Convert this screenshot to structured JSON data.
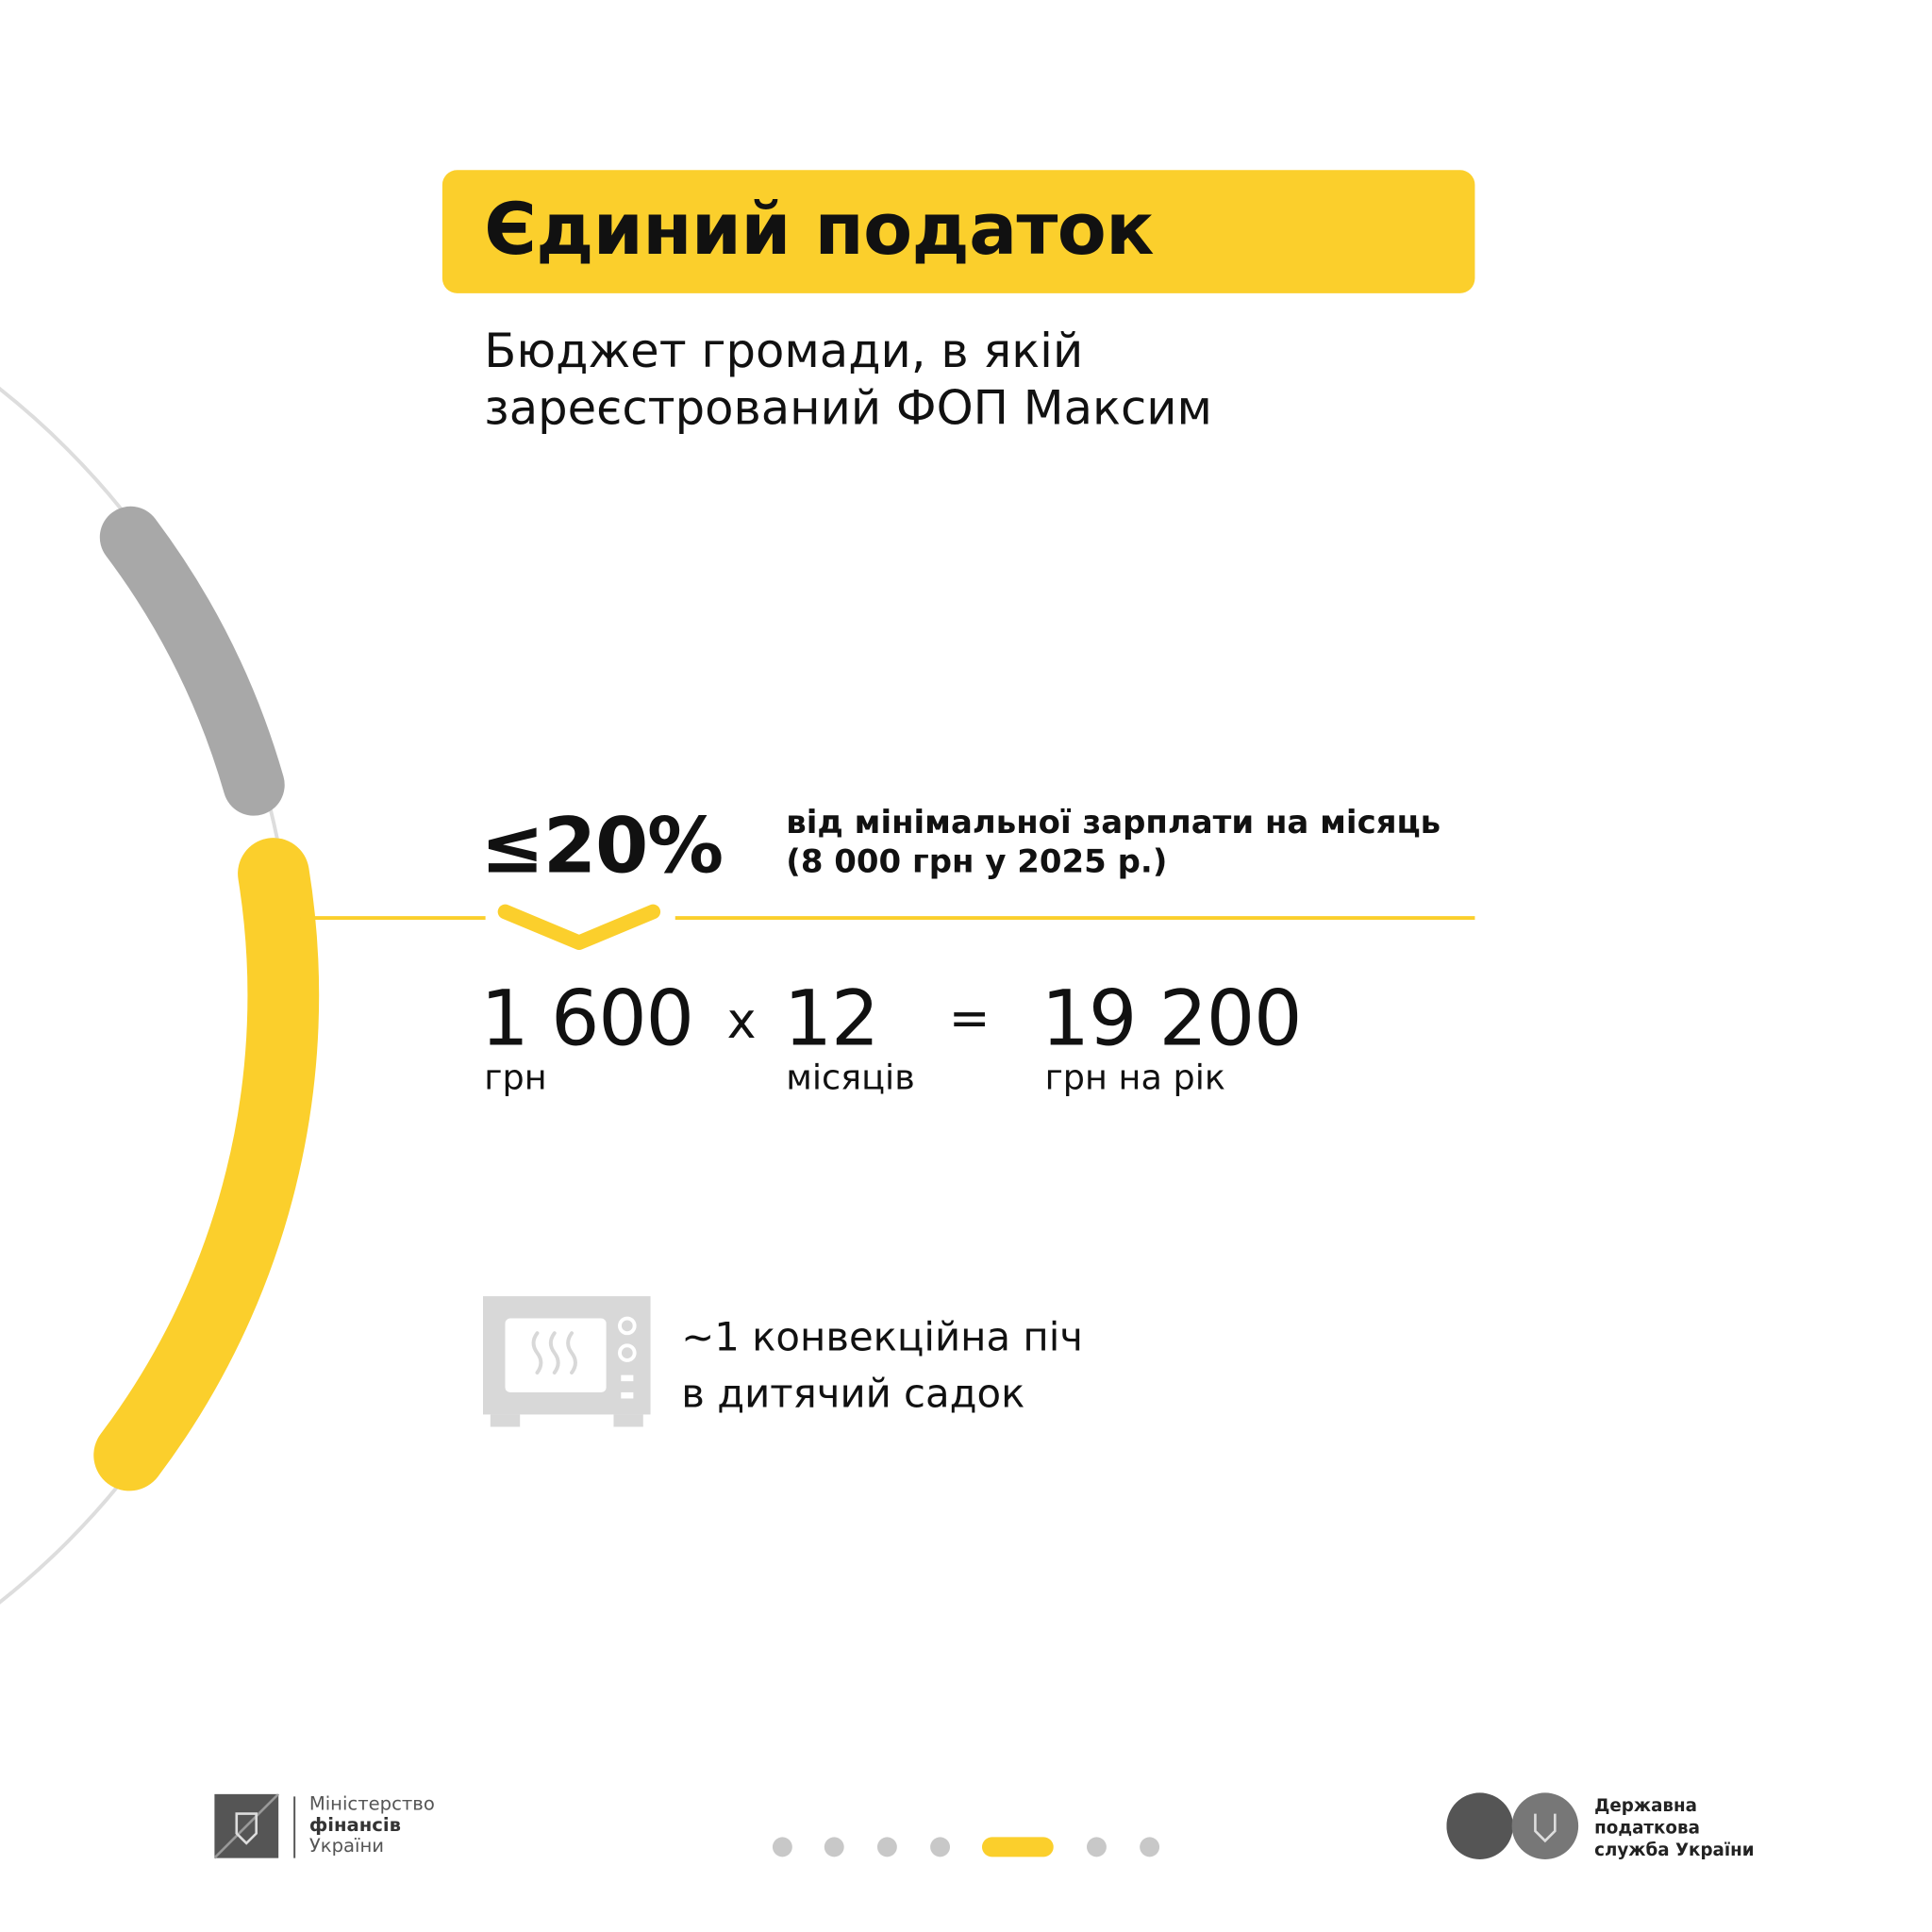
{
  "title": "Єдиний податок",
  "subtitle_lines": [
    "Бюджет громади, в якій",
    "зареєстрований ФОП Максим"
  ],
  "rate": {
    "value": "≤20%",
    "note_lines": [
      "від мінімальної зарплати на місяць",
      "(8 000 грн у 2025 р.)"
    ]
  },
  "calc": {
    "monthly": "1 600",
    "monthly_unit": "грн",
    "times": "x",
    "months": "12",
    "months_unit": "місяців",
    "equals": "=",
    "total": "19 200",
    "total_unit": "грн на рік"
  },
  "equivalent": {
    "icon": "convection-oven-icon",
    "lines": [
      "~1 конвекційна піч",
      "в дитячий садок"
    ]
  },
  "pagination": {
    "count": 7,
    "active_index": 4
  },
  "footer": {
    "left_logo_lines": [
      "Міністерство",
      "фінансів",
      "України"
    ],
    "right_logo_lines": [
      "Державна",
      "податкова",
      "служба України"
    ]
  },
  "colors": {
    "accent": "#FBCF2C",
    "gray": "#A8A8A8",
    "light_gray": "#D8D8D8",
    "text": "#111111"
  }
}
